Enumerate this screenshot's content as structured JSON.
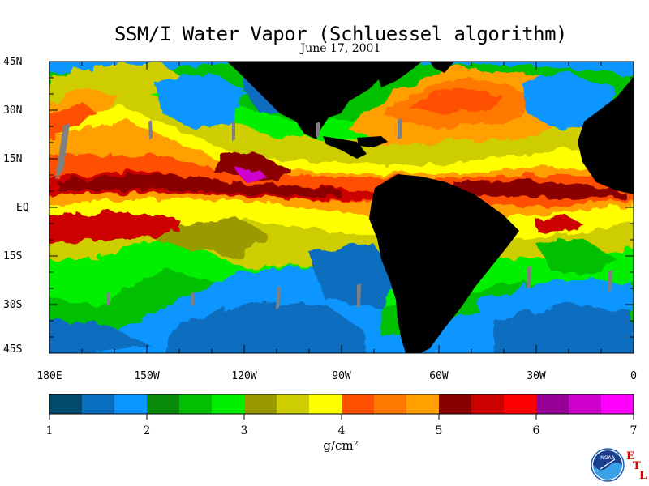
{
  "title": "SSM/I Water Vapor (Schluessel algorithm)",
  "subtitle": "June 17, 2001",
  "lat_labels": [
    "45N",
    "30N",
    "15N",
    "EQ",
    "15S",
    "30S",
    "45S"
  ],
  "lon_labels": [
    "180E",
    "150W",
    "120W",
    "90W",
    "60W",
    "30W",
    "0"
  ],
  "colorbar": {
    "ticks": [
      "1",
      "2",
      "3",
      "4",
      "5",
      "6",
      "7"
    ],
    "unit": "g/cm²",
    "colors": [
      "#004a6e",
      "#0a6ec0",
      "#0a96ff",
      "#0a8a0a",
      "#00c000",
      "#00f000",
      "#9a9a00",
      "#cdcd00",
      "#ffff00",
      "#ff5000",
      "#ff7800",
      "#ffa000",
      "#8a0000",
      "#cd0000",
      "#ff0000",
      "#960096",
      "#cd00cd",
      "#ff00ff"
    ]
  },
  "chart_data": {
    "type": "heatmap",
    "title": "SSM/I Water Vapor (Schluessel algorithm)",
    "subtitle": "June 17, 2001",
    "x_range": [
      -180,
      0
    ],
    "y_range": [
      -45,
      45
    ],
    "x_ticks": [
      "180E",
      "150W",
      "120W",
      "90W",
      "60W",
      "30W",
      "0"
    ],
    "y_ticks": [
      "45N",
      "30N",
      "15N",
      "EQ",
      "15S",
      "30S",
      "45S"
    ],
    "value_range": [
      1,
      7
    ],
    "value_unit": "g/cm²"
  },
  "logo": {
    "agency": "NOAA",
    "lab_letters": [
      "E",
      "T",
      "L"
    ]
  }
}
